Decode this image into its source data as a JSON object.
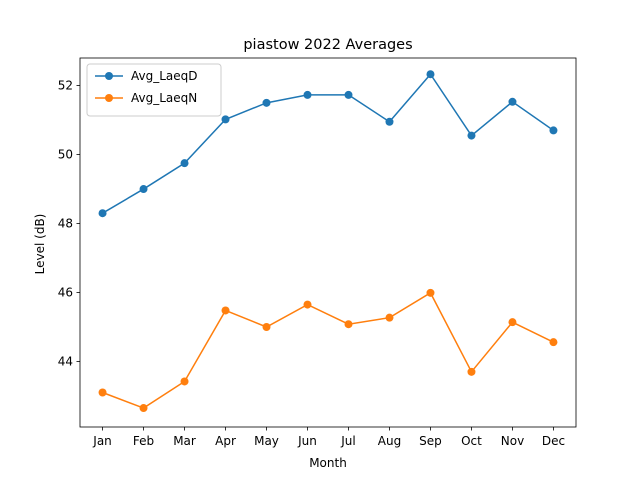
{
  "chart_data": {
    "type": "line",
    "title": "piastow 2022 Averages",
    "xlabel": "Month",
    "ylabel": "Level (dB)",
    "categories": [
      "Jan",
      "Feb",
      "Mar",
      "Apr",
      "May",
      "Jun",
      "Jul",
      "Aug",
      "Sep",
      "Oct",
      "Nov",
      "Dec"
    ],
    "yticks": [
      44,
      46,
      48,
      50,
      52
    ],
    "ylim": [
      42.1,
      52.8
    ],
    "grid": false,
    "legend_position": "upper-left",
    "series": [
      {
        "name": "Avg_LaeqD",
        "color": "#1f77b4",
        "values": [
          48.3,
          49.0,
          49.75,
          51.02,
          51.5,
          51.73,
          51.73,
          50.95,
          52.33,
          50.55,
          51.53,
          50.7
        ]
      },
      {
        "name": "Avg_LaeqN",
        "color": "#ff7f0e",
        "values": [
          43.1,
          42.65,
          43.42,
          45.48,
          45.0,
          45.65,
          45.08,
          45.27,
          45.99,
          43.7,
          45.14,
          44.56
        ]
      }
    ]
  }
}
